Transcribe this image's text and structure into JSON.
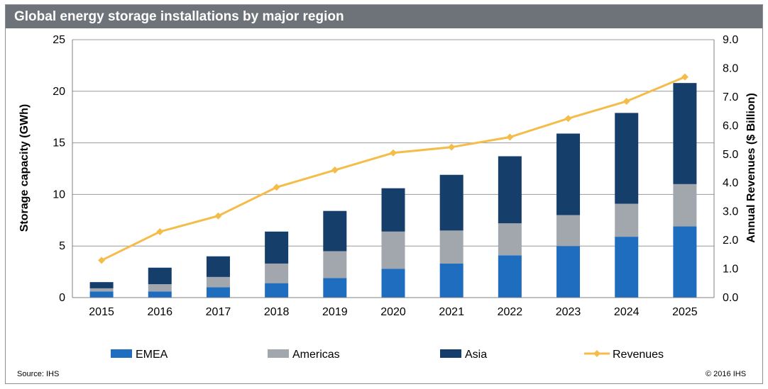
{
  "chart_data": {
    "type": "bar",
    "stacked": true,
    "title": "Global energy storage installations by major region",
    "categories": [
      "2015",
      "2016",
      "2017",
      "2018",
      "2019",
      "2020",
      "2021",
      "2022",
      "2023",
      "2024",
      "2025"
    ],
    "series": [
      {
        "name": "EMEA",
        "color": "#1f6dbf",
        "values": [
          0.6,
          0.6,
          1.0,
          1.4,
          1.9,
          2.8,
          3.3,
          4.1,
          5.0,
          5.9,
          6.9
        ]
      },
      {
        "name": "Americas",
        "color": "#a2a7ad",
        "values": [
          0.3,
          0.7,
          1.0,
          1.9,
          2.6,
          3.6,
          3.2,
          3.1,
          3.0,
          3.2,
          4.1
        ]
      },
      {
        "name": "Asia",
        "color": "#163e6b",
        "values": [
          0.6,
          1.6,
          2.0,
          3.1,
          3.9,
          4.2,
          5.4,
          6.5,
          7.9,
          8.8,
          9.8
        ]
      }
    ],
    "line_series": {
      "name": "Revenues",
      "color": "#f4bd4a",
      "axis": "right",
      "values": [
        1.3,
        2.3,
        2.85,
        3.85,
        4.45,
        5.05,
        5.25,
        5.6,
        6.25,
        6.85,
        7.7
      ]
    },
    "ylabel": "Storage capacity (GWh)",
    "ylim": [
      0,
      25
    ],
    "yticks": [
      "0",
      "5",
      "10",
      "15",
      "20",
      "25"
    ],
    "y2label": "Annual Revenues ($ Billion)",
    "y2lim": [
      0,
      9
    ],
    "y2ticks": [
      "0.0",
      "1.0",
      "2.0",
      "3.0",
      "4.0",
      "5.0",
      "6.0",
      "7.0",
      "8.0",
      "9.0"
    ],
    "legend_position": "bottom",
    "grid": true
  },
  "footer": {
    "source": "Source: IHS",
    "copyright": "© 2016 IHS"
  }
}
